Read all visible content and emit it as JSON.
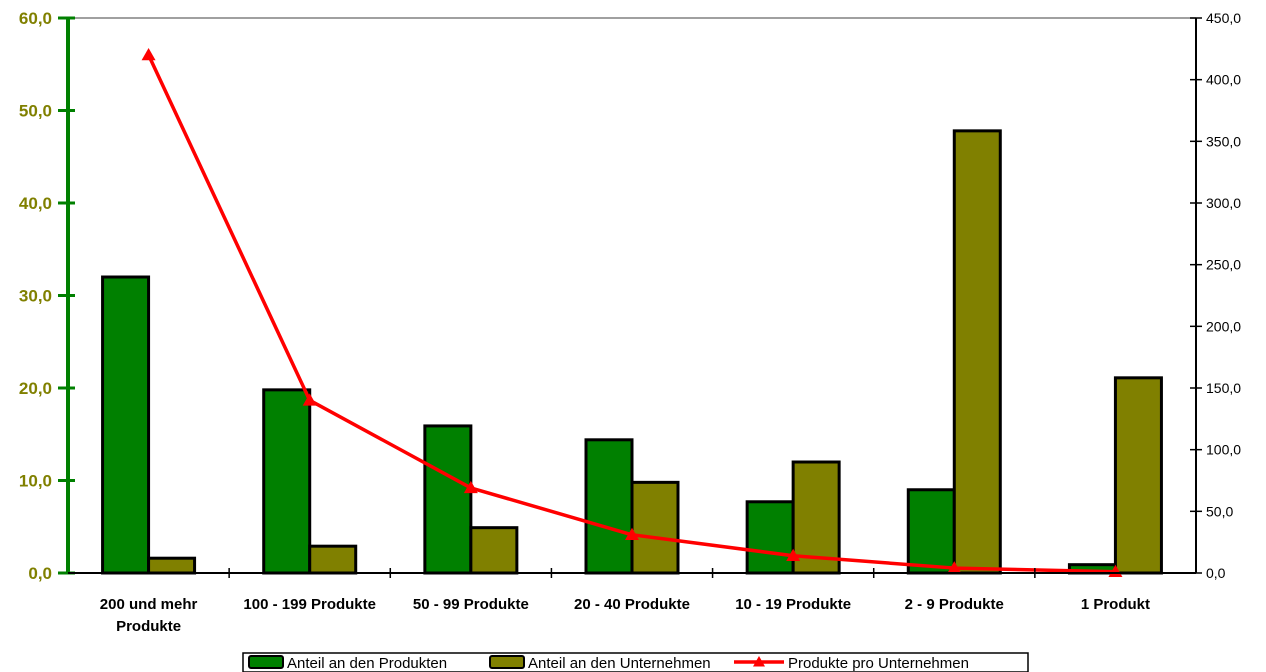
{
  "chart_data": {
    "type": "bar",
    "categories": [
      [
        "200 und mehr",
        "Produkte"
      ],
      [
        "100 - 199 Produkte"
      ],
      [
        "50 - 99 Produkte"
      ],
      [
        "20 - 40 Produkte"
      ],
      [
        "10 - 19 Produkte"
      ],
      [
        "2 - 9 Produkte"
      ],
      [
        "1 Produkt"
      ]
    ],
    "series": [
      {
        "name": "Anteil an den Produkten",
        "type": "bar",
        "axis": "left",
        "color": "#008000",
        "values": [
          32.0,
          19.8,
          15.9,
          14.4,
          7.7,
          9.0,
          0.9
        ]
      },
      {
        "name": "Anteil an den Unternehmen",
        "type": "bar",
        "axis": "left",
        "color": "#808000",
        "values": [
          1.6,
          2.9,
          4.9,
          9.8,
          12.0,
          47.8,
          21.1
        ]
      },
      {
        "name": "Produkte pro Unternehmen",
        "type": "line",
        "axis": "right",
        "color": "#ff0000",
        "marker": "triangle",
        "values": [
          420,
          140,
          69,
          31,
          14,
          4,
          1
        ]
      }
    ],
    "left_axis": {
      "range": [
        0,
        60
      ],
      "ticks": [
        "0,0",
        "10,0",
        "20,0",
        "30,0",
        "40,0",
        "50,0",
        "60,0"
      ],
      "color": "#808000",
      "axis_line_color": "#008000"
    },
    "right_axis": {
      "range": [
        0,
        450
      ],
      "ticks": [
        "0,0",
        "50,0",
        "100,0",
        "150,0",
        "200,0",
        "250,0",
        "300,0",
        "350,0",
        "400,0",
        "450,0"
      ]
    },
    "grid": false,
    "legend_position": "bottom"
  }
}
